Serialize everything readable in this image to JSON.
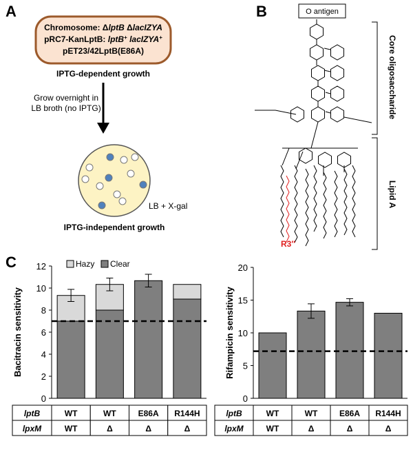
{
  "panel_a": {
    "label": "A",
    "box_lines": [
      [
        {
          "text": "Chromosome: Δ"
        },
        {
          "text": "lptB",
          "italic": true
        },
        {
          "text": " Δ"
        },
        {
          "text": "lacIZYA",
          "italic": true
        }
      ],
      [
        {
          "text": "pRC7-KanLptB: "
        },
        {
          "text": "lptB",
          "italic": true
        },
        {
          "text": "+",
          "sup": true
        },
        {
          "text": " lacIZYA",
          "italic": true
        },
        {
          "text": "+",
          "sup": true
        }
      ],
      [
        {
          "text": "pET23/42LptB(E86A)"
        }
      ]
    ],
    "caption_top": "IPTG-dependent growth",
    "arrow_text": [
      "Grow overnight in",
      "LB broth (no IPTG)"
    ],
    "plate_label": "LB + X-gal",
    "caption_bottom": "IPTG-independent growth"
  },
  "panel_b": {
    "label": "B",
    "o_antigen": "O antigen",
    "core_label": "Core oligosaccharide",
    "lipid_label": "Lipid A",
    "r_label": "R3″"
  },
  "panel_c": {
    "label": "C"
  },
  "chart_data": [
    {
      "type": "bar",
      "stacked": true,
      "ylabel": "Bacitracin sensitivity",
      "ylim": [
        0,
        12
      ],
      "yticks": [
        0,
        2,
        4,
        6,
        8,
        10,
        12
      ],
      "series": [
        {
          "name": "Clear",
          "color": "#7f7f7f",
          "values": [
            7,
            8,
            10.67,
            9
          ]
        },
        {
          "name": "Hazy",
          "color": "#d9d9d9",
          "values": [
            2.33,
            2.33,
            0,
            1.33
          ]
        }
      ],
      "errors": [
        0.55,
        0.58,
        0.58,
        null
      ],
      "reference_line": 7,
      "legend": "top-left",
      "table": {
        "rows": [
          [
            "lptB",
            "WT",
            "WT",
            "E86A",
            "R144H"
          ],
          [
            "lpxM",
            "WT",
            "Δ",
            "Δ",
            "Δ"
          ]
        ]
      }
    },
    {
      "type": "bar",
      "ylabel": "Rifampicin sensitivity",
      "ylim": [
        0,
        20
      ],
      "yticks": [
        0,
        5,
        10,
        15,
        20
      ],
      "series": [
        {
          "color": "#7f7f7f",
          "values": [
            10,
            13.33,
            14.67,
            13
          ]
        }
      ],
      "errors": [
        null,
        1.1,
        0.55,
        null
      ],
      "reference_line": 7.2,
      "table": {
        "rows": [
          [
            "lptB",
            "WT",
            "WT",
            "E86A",
            "R144H"
          ],
          [
            "lpxM",
            "WT",
            "Δ",
            "Δ",
            "Δ"
          ]
        ]
      }
    }
  ]
}
